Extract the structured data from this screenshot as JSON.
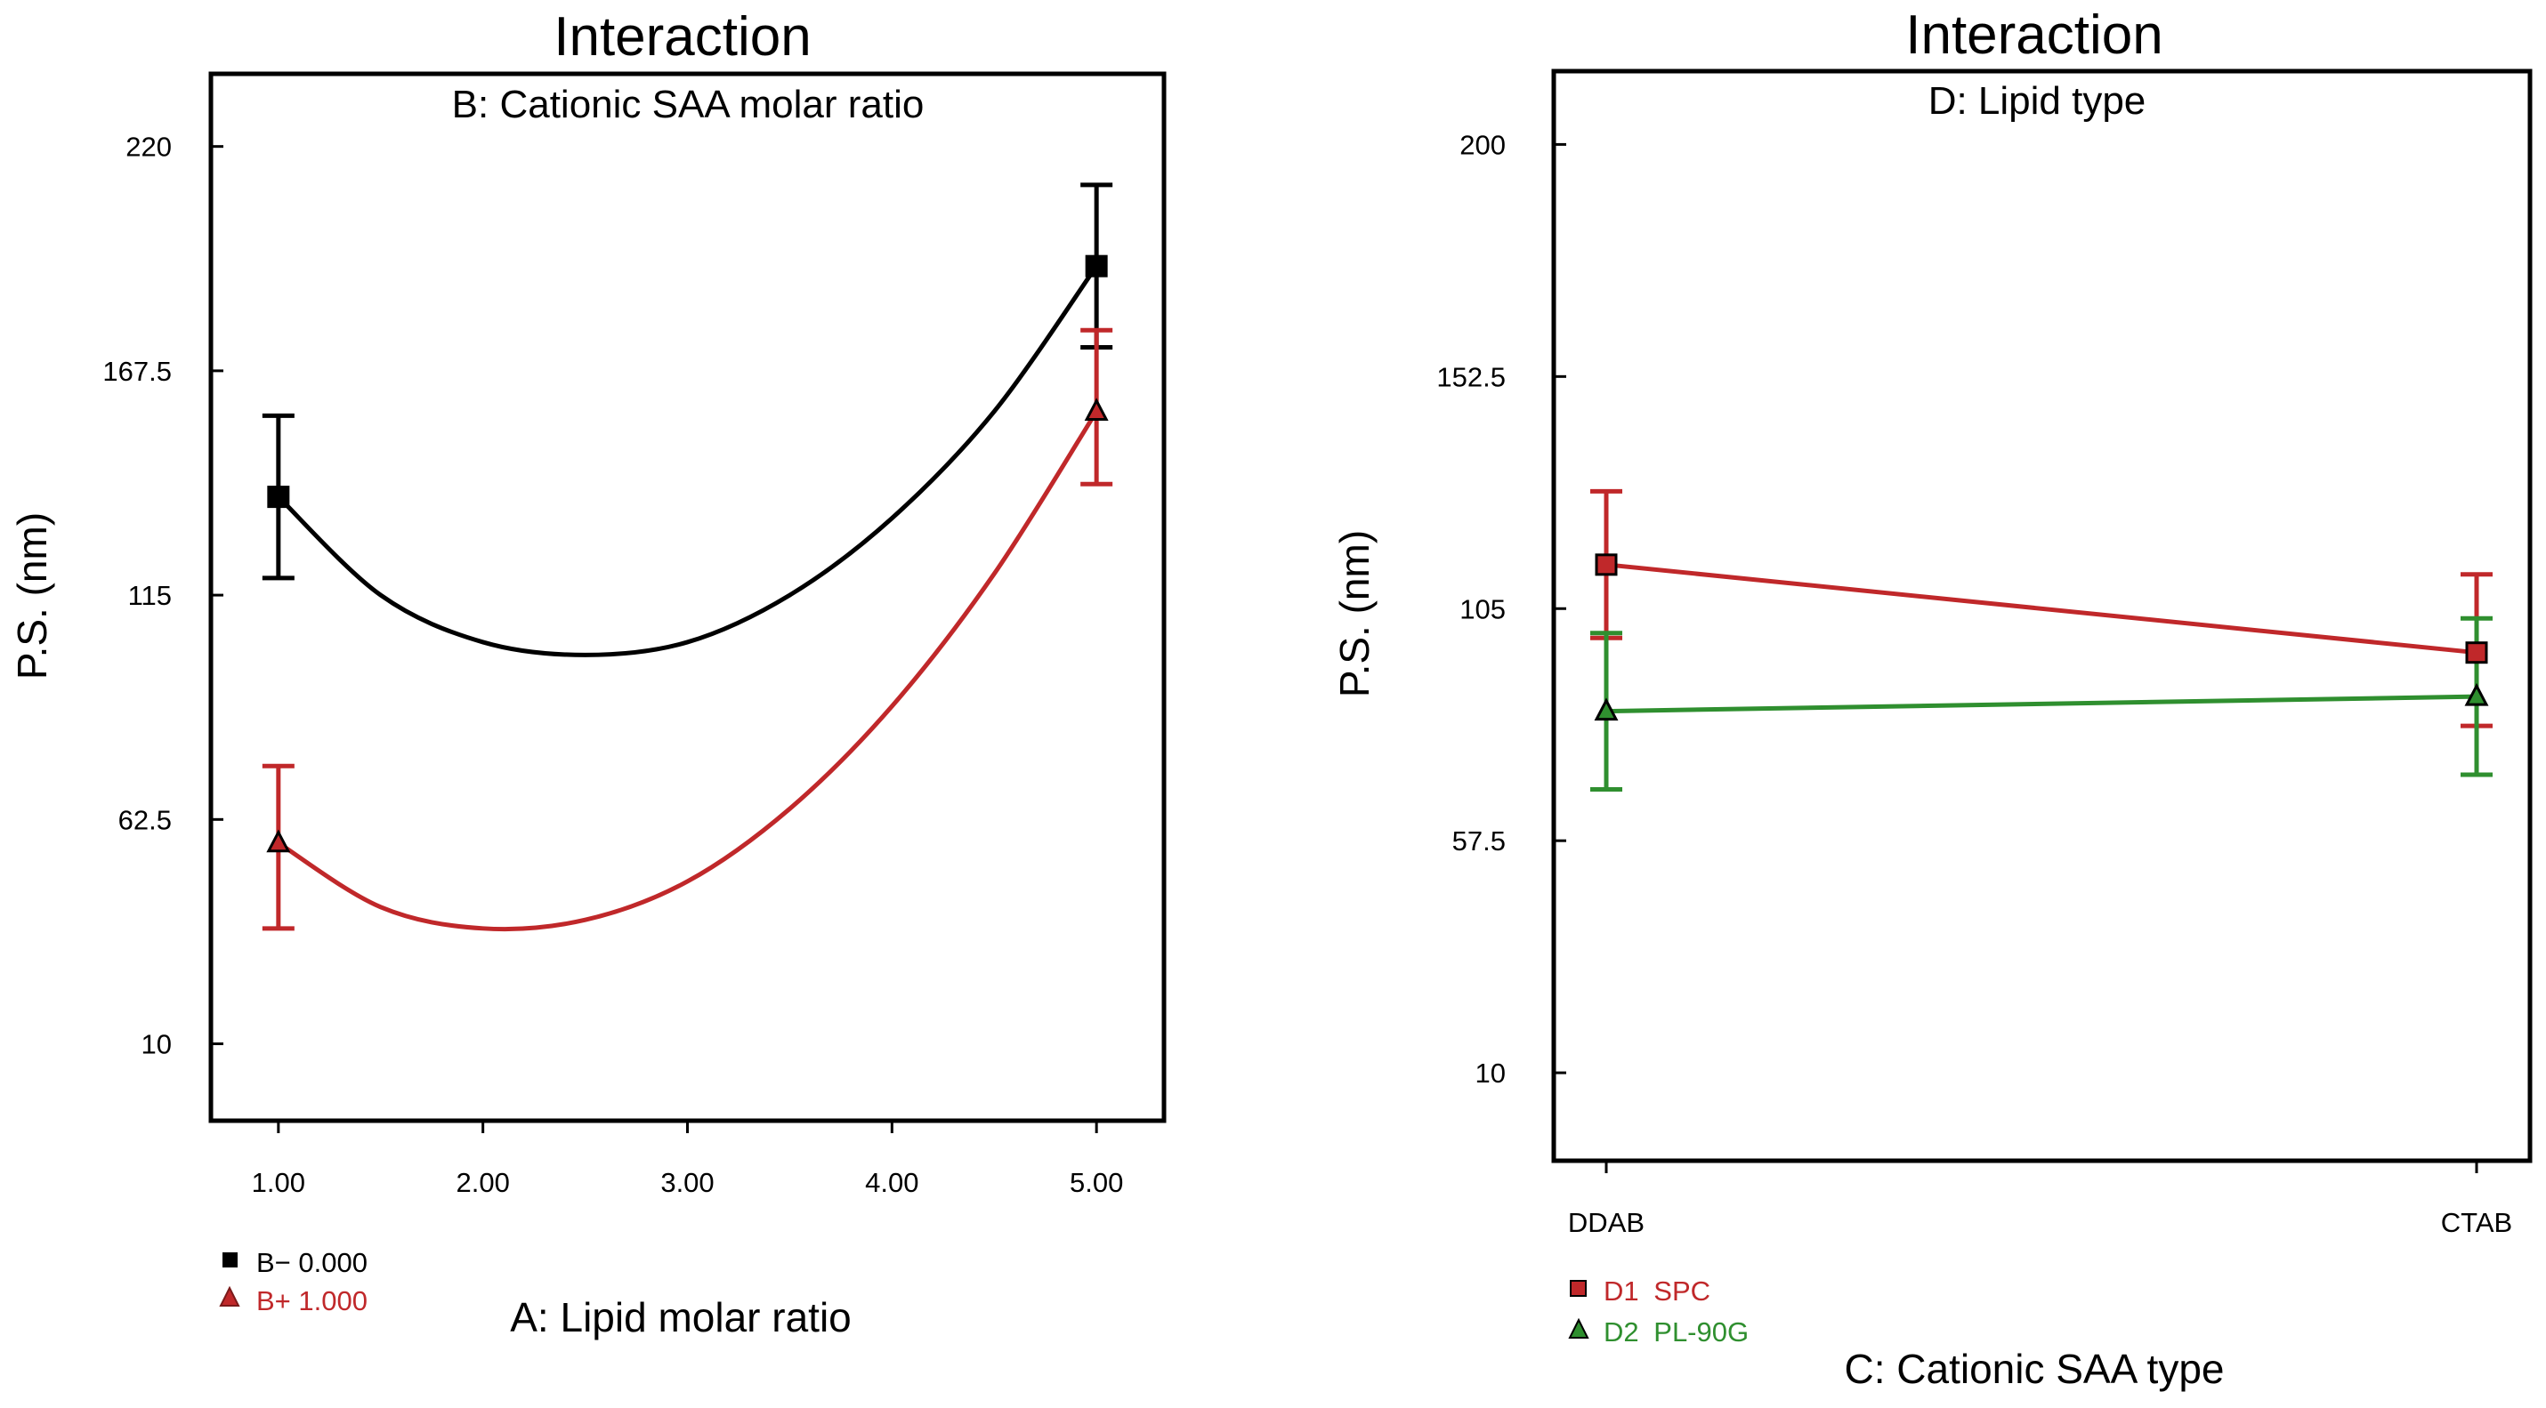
{
  "chart_data": [
    {
      "type": "line",
      "title": "Interaction",
      "subtitle": "B: Cationic SAA molar ratio",
      "xlabel": "A: Lipid molar ratio",
      "ylabel": "P.S. (nm)",
      "xlim": [
        0.67,
        5.33
      ],
      "ylim": [
        -8,
        237
      ],
      "xticks": [
        1,
        2,
        3,
        4,
        5
      ],
      "xtick_labels": [
        "1.00",
        "2.00",
        "3.00",
        "4.00",
        "5.00"
      ],
      "yticks": [
        10,
        62.5,
        115,
        167.5,
        220
      ],
      "ytick_labels": [
        "10",
        "62.5",
        "115",
        "167.5",
        "220"
      ],
      "series": [
        {
          "name": "B− 0.000",
          "legend_label": "B− 0.000",
          "color": "#000000",
          "marker": "square",
          "curve_x": [
            1.0,
            1.5,
            2.0,
            2.5,
            3.0,
            3.5,
            4.0,
            4.5,
            5.0
          ],
          "curve_y": [
            138,
            115,
            104,
            101,
            104,
            115,
            133,
            158,
            192
          ],
          "points": [
            {
              "x": 1,
              "y": 138,
              "err_low": 119,
              "err_high": 157
            },
            {
              "x": 5,
              "y": 192,
              "err_low": 173,
              "err_high": 211
            }
          ]
        },
        {
          "name": "B+ 1.000",
          "legend_label": "B+ 1.000",
          "color": "#c0282a",
          "marker": "triangle",
          "curve_x": [
            1.0,
            1.5,
            2.0,
            2.5,
            3.0,
            3.5,
            4.0,
            4.5,
            5.0
          ],
          "curve_y": [
            57,
            42,
            37,
            39,
            48,
            65,
            89,
            120,
            158
          ],
          "points": [
            {
              "x": 1,
              "y": 57,
              "err_low": 37,
              "err_high": 75
            },
            {
              "x": 5,
              "y": 158,
              "err_low": 141,
              "err_high": 177
            }
          ]
        }
      ]
    },
    {
      "type": "line",
      "title": "Interaction",
      "subtitle": "D: Lipid type",
      "xlabel": "C: Cationic SAA type",
      "ylabel": "P.S. (nm)",
      "categories": [
        "DDAB",
        "CTAB"
      ],
      "ylim": [
        -8,
        215
      ],
      "yticks": [
        10,
        57.5,
        105,
        152.5,
        200
      ],
      "ytick_labels": [
        "10",
        "57.5",
        "105",
        "152.5",
        "200"
      ],
      "series": [
        {
          "name": "D1 SPC",
          "legend_prefix": "D1",
          "legend_name": "SPC",
          "color": "#c0282a",
          "marker": "square",
          "values": [
            114,
            96
          ],
          "err_low": [
            99,
            81
          ],
          "err_high": [
            129,
            112
          ]
        },
        {
          "name": "D2 PL-90G",
          "legend_prefix": "D2",
          "legend_name": "PL-90G",
          "color": "#2f8f2f",
          "marker": "triangle",
          "values": [
            84,
            87
          ],
          "err_low": [
            68,
            71
          ],
          "err_high": [
            100,
            103
          ]
        }
      ]
    }
  ]
}
